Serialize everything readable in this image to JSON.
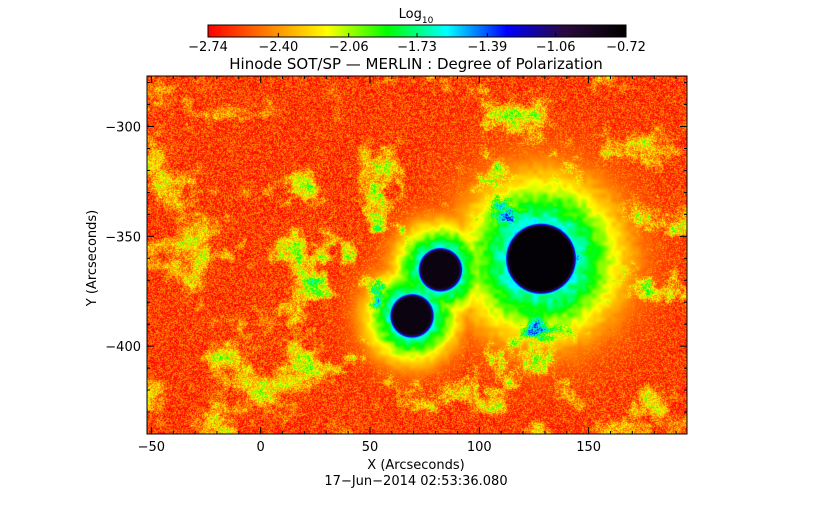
{
  "chart_data": {
    "type": "heatmap",
    "title": "Hinode SOT/SP — MERLIN : Degree of Polarization",
    "xlabel": "X (Arcseconds)",
    "ylabel": "Y (Arcseconds)",
    "xlim": [
      -52,
      195
    ],
    "ylim": [
      -440,
      -277
    ],
    "x_ticks": [
      -50,
      0,
      50,
      100,
      150
    ],
    "y_ticks": [
      -300,
      -350,
      -400
    ],
    "x_tick_labels": [
      "−50",
      "0",
      "50",
      "100",
      "150"
    ],
    "y_tick_labels": [
      "−300",
      "−350",
      "−400"
    ],
    "timestamp": "17−Jun−2014 02:53:36.080",
    "colorbar": {
      "label_base": "Log",
      "label_subscript": "10",
      "min": -2.74,
      "max": -0.72,
      "ticks": [
        -2.74,
        -2.4,
        -2.06,
        -1.73,
        -1.39,
        -1.06,
        -0.72
      ],
      "tick_labels": [
        "−2.74",
        "−2.40",
        "−2.06",
        "−1.73",
        "−1.39",
        "−1.06",
        "−0.72"
      ],
      "colormap": [
        "#ff0000",
        "#ff7f00",
        "#ffff00",
        "#00ff00",
        "#00ffff",
        "#0000ff",
        "#2a0a3a",
        "#000000"
      ]
    },
    "features": [
      {
        "name": "sunspot",
        "x": 128,
        "y": -360,
        "radius": 14,
        "peak": -0.75
      },
      {
        "name": "sunspot",
        "x": 82,
        "y": -365,
        "radius": 8,
        "peak": -0.8
      },
      {
        "name": "sunspot",
        "x": 69,
        "y": -386,
        "radius": 8,
        "peak": -0.8
      }
    ],
    "background_level": -2.6
  }
}
